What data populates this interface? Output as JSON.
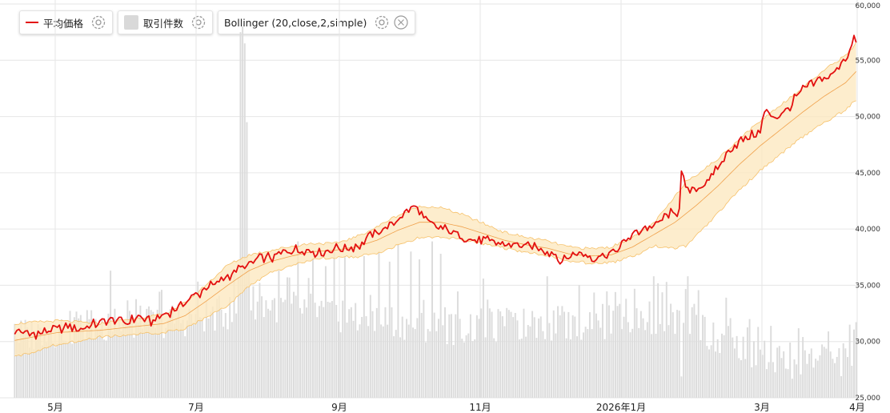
{
  "legend": {
    "items": [
      {
        "key": "price",
        "label": "平均価格",
        "swatch": "line",
        "color": "#e31010"
      },
      {
        "key": "volume",
        "label": "取引件数",
        "swatch": "box",
        "color": "#d9d9d9"
      },
      {
        "key": "bollinger",
        "label": "Bollinger (20,close,2,simple)",
        "swatch": "none",
        "color": "#f3b553",
        "closable": true
      }
    ]
  },
  "chart_data": {
    "type": "line",
    "x_tick_labels": [
      "5月",
      "7月",
      "9月",
      "11月",
      "2026年1月",
      "3月",
      "4月"
    ],
    "y_tick_labels": [
      "25,000",
      "30,000",
      "35,000",
      "40,000",
      "45,000",
      "50,000",
      "55,000",
      "60,000"
    ],
    "ylim": [
      25000,
      60000
    ],
    "grid": true,
    "legend_position": "top-left",
    "colors": {
      "price": "#e31010",
      "volume": "#dcdcdc",
      "band_fill": "#fde8c0",
      "band_edge": "#f6c16a",
      "middle": "#f0a04a",
      "grid": "#e6e6e6"
    },
    "series": [
      {
        "name": "平均価格",
        "kind": "line",
        "anchors": [
          [
            0,
            31000
          ],
          [
            8,
            30600
          ],
          [
            16,
            30900
          ],
          [
            24,
            31300
          ],
          [
            32,
            31200
          ],
          [
            40,
            31700
          ],
          [
            46,
            32100
          ],
          [
            52,
            31600
          ],
          [
            58,
            32200
          ],
          [
            64,
            31800
          ],
          [
            72,
            32500
          ],
          [
            80,
            33600
          ],
          [
            86,
            34200
          ],
          [
            92,
            34900
          ],
          [
            98,
            35600
          ],
          [
            104,
            36300
          ],
          [
            110,
            36900
          ],
          [
            116,
            37400
          ],
          [
            122,
            37500
          ],
          [
            126,
            37900
          ],
          [
            132,
            38200
          ],
          [
            138,
            38100
          ],
          [
            144,
            37800
          ],
          [
            150,
            38300
          ],
          [
            156,
            38200
          ],
          [
            162,
            38600
          ],
          [
            166,
            39300
          ],
          [
            170,
            39600
          ],
          [
            174,
            40100
          ],
          [
            178,
            40400
          ],
          [
            182,
            41300
          ],
          [
            186,
            41900
          ],
          [
            188,
            42100
          ],
          [
            192,
            40900
          ],
          [
            196,
            40400
          ],
          [
            200,
            40100
          ],
          [
            206,
            39700
          ],
          [
            210,
            39300
          ],
          [
            216,
            39000
          ],
          [
            222,
            38900
          ],
          [
            228,
            38700
          ],
          [
            236,
            38600
          ],
          [
            244,
            38400
          ],
          [
            250,
            38000
          ],
          [
            254,
            37700
          ],
          [
            256,
            37100
          ],
          [
            260,
            37600
          ],
          [
            266,
            37800
          ],
          [
            270,
            37500
          ],
          [
            276,
            37600
          ],
          [
            280,
            37900
          ],
          [
            284,
            38400
          ],
          [
            288,
            39200
          ],
          [
            292,
            39700
          ],
          [
            296,
            40100
          ],
          [
            300,
            40300
          ],
          [
            304,
            40800
          ],
          [
            308,
            41400
          ],
          [
            310,
            41100
          ],
          [
            312,
            42000
          ],
          [
            313,
            45400
          ],
          [
            315,
            43500
          ],
          [
            317,
            43300
          ],
          [
            322,
            43800
          ],
          [
            328,
            44800
          ],
          [
            334,
            46500
          ],
          [
            338,
            47500
          ],
          [
            342,
            47900
          ],
          [
            346,
            48300
          ],
          [
            350,
            48600
          ],
          [
            352,
            50500
          ],
          [
            354,
            50200
          ],
          [
            358,
            50000
          ],
          [
            362,
            50500
          ],
          [
            366,
            51500
          ],
          [
            370,
            52400
          ],
          [
            374,
            52900
          ],
          [
            378,
            53200
          ],
          [
            382,
            53500
          ],
          [
            386,
            54100
          ],
          [
            388,
            54900
          ],
          [
            392,
            55700
          ],
          [
            394,
            56900
          ],
          [
            395,
            56700
          ]
        ]
      },
      {
        "name": "Bollinger (20,close,2,simple)",
        "kind": "band",
        "middle_anchors": [
          [
            0,
            30100
          ],
          [
            20,
            30800
          ],
          [
            40,
            31000
          ],
          [
            60,
            31400
          ],
          [
            70,
            31600
          ],
          [
            80,
            32300
          ],
          [
            90,
            33600
          ],
          [
            100,
            35000
          ],
          [
            110,
            36300
          ],
          [
            120,
            37100
          ],
          [
            130,
            37600
          ],
          [
            140,
            38000
          ],
          [
            150,
            38100
          ],
          [
            160,
            38400
          ],
          [
            170,
            39000
          ],
          [
            180,
            39900
          ],
          [
            190,
            40600
          ],
          [
            200,
            40600
          ],
          [
            210,
            40200
          ],
          [
            220,
            39600
          ],
          [
            230,
            39000
          ],
          [
            240,
            38600
          ],
          [
            250,
            38300
          ],
          [
            260,
            37800
          ],
          [
            270,
            37600
          ],
          [
            280,
            37700
          ],
          [
            290,
            38400
          ],
          [
            300,
            39500
          ],
          [
            310,
            40600
          ],
          [
            320,
            42100
          ],
          [
            330,
            43800
          ],
          [
            340,
            45700
          ],
          [
            350,
            47400
          ],
          [
            360,
            48900
          ],
          [
            370,
            50400
          ],
          [
            380,
            51800
          ],
          [
            390,
            53000
          ],
          [
            395,
            54000
          ]
        ],
        "width_anchors": [
          [
            0,
            1500
          ],
          [
            40,
            600
          ],
          [
            70,
            800
          ],
          [
            100,
            1800
          ],
          [
            120,
            1000
          ],
          [
            150,
            600
          ],
          [
            175,
            1300
          ],
          [
            195,
            1400
          ],
          [
            230,
            700
          ],
          [
            260,
            600
          ],
          [
            280,
            700
          ],
          [
            300,
            1000
          ],
          [
            315,
            2900
          ],
          [
            330,
            2400
          ],
          [
            350,
            2200
          ],
          [
            370,
            2200
          ],
          [
            395,
            2500
          ]
        ]
      },
      {
        "name": "取引件数",
        "kind": "volume",
        "base_anchors": [
          [
            0,
            30500
          ],
          [
            20,
            31000
          ],
          [
            40,
            31500
          ],
          [
            60,
            31600
          ],
          [
            80,
            32000
          ],
          [
            100,
            32600
          ],
          [
            110,
            33600
          ],
          [
            120,
            33300
          ],
          [
            130,
            33000
          ],
          [
            140,
            32800
          ],
          [
            150,
            32500
          ],
          [
            160,
            32000
          ],
          [
            180,
            31800
          ],
          [
            200,
            31200
          ],
          [
            240,
            31500
          ],
          [
            280,
            31800
          ],
          [
            300,
            32200
          ],
          [
            320,
            31800
          ],
          [
            340,
            29200
          ],
          [
            360,
            28200
          ],
          [
            380,
            28200
          ],
          [
            395,
            28500
          ]
        ],
        "spikes": [
          [
            106,
            57500
          ],
          [
            107,
            58000
          ],
          [
            108,
            56500
          ],
          [
            109,
            49500
          ],
          [
            110,
            36800
          ],
          [
            133,
            38900
          ],
          [
            140,
            37400
          ],
          [
            146,
            36700
          ],
          [
            150,
            38200
          ],
          [
            155,
            37500
          ],
          [
            164,
            37600
          ],
          [
            171,
            37900
          ],
          [
            176,
            37100
          ],
          [
            180,
            38700
          ],
          [
            186,
            38000
          ],
          [
            190,
            37300
          ],
          [
            196,
            38900
          ],
          [
            200,
            37800
          ],
          [
            45,
            36300
          ],
          [
            220,
            35600
          ],
          [
            250,
            35800
          ],
          [
            282,
            34400
          ],
          [
            300,
            35800
          ],
          [
            306,
            35300
          ],
          [
            316,
            35800
          ],
          [
            334,
            33900
          ],
          [
            349,
            31300
          ],
          [
            382,
            30900
          ],
          [
            392,
            31500
          ]
        ],
        "dips": [
          [
            313,
            26900
          ],
          [
            326,
            29300
          ]
        ]
      }
    ]
  }
}
